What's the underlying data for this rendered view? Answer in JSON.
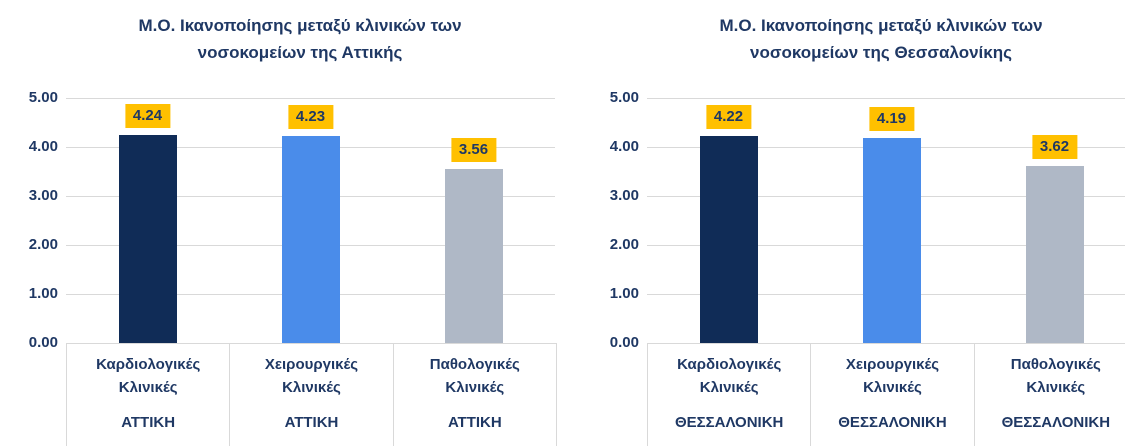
{
  "page": {
    "background": "#FFFFFF"
  },
  "axis": {
    "ticks": [
      "5.00",
      "4.00",
      "3.00",
      "2.00",
      "1.00",
      "0.00"
    ],
    "min": 0,
    "max": 5
  },
  "colors": {
    "title_text": "#1F3864",
    "axis_text": "#1F3864",
    "category_text": "#1F3864",
    "gridline": "#D9D9D9",
    "frame": "#D9D9D9",
    "data_label_bg": "#FFC000",
    "data_label_text": "#1F3864",
    "bar_navy": "#102C57",
    "bar_blue": "#4A8CEA",
    "bar_gray": "#AFB8C6"
  },
  "chart_data": [
    {
      "type": "bar",
      "title": "Μ.Ο. Ικανοποίησης μεταξύ κλινικών των νοσοκομείων της Αττικής",
      "title_lines": [
        "Μ.Ο. Ικανοποίησης μεταξύ κλινικών των",
        "νοσοκομείων της Αττικής"
      ],
      "categories": [
        "Καρδιολογικές Κλινικές",
        "Χειρουργικές Κλινικές",
        "Παθολογικές Κλινικές"
      ],
      "group_labels": [
        "ΑΤΤΙΚΗ",
        "ΑΤΤΙΚΗ",
        "ΑΤΤΙΚΗ"
      ],
      "values": [
        4.24,
        4.23,
        3.56
      ],
      "value_labels": [
        "4.24",
        "4.23",
        "3.56"
      ],
      "bar_colors": [
        "#102C57",
        "#4A8CEA",
        "#AFB8C6"
      ],
      "xlabel": "",
      "ylabel": "",
      "ylim": [
        0,
        5
      ],
      "yticks": [
        "5.00",
        "4.00",
        "3.00",
        "2.00",
        "1.00",
        "0.00"
      ],
      "grid": true,
      "legend": false,
      "data_labels_on_gold_background": true
    },
    {
      "type": "bar",
      "title": "Μ.Ο. Ικανοποίησης μεταξύ κλινικών των νοσοκομείων της Θεσσαλονίκης",
      "title_lines": [
        "Μ.Ο. Ικανοποίησης μεταξύ κλινικών των",
        "νοσοκομείων της Θεσσαλονίκης"
      ],
      "categories": [
        "Καρδιολογικές Κλινικές",
        "Χειρουργικές Κλινικές",
        "Παθολογικές Κλινικές"
      ],
      "group_labels": [
        "ΘΕΣΣΑΛΟΝΙΚΗ",
        "ΘΕΣΣΑΛΟΝΙΚΗ",
        "ΘΕΣΣΑΛΟΝΙΚΗ"
      ],
      "values": [
        4.22,
        4.19,
        3.62
      ],
      "value_labels": [
        "4.22",
        "4.19",
        "3.62"
      ],
      "bar_colors": [
        "#102C57",
        "#4A8CEA",
        "#AFB8C6"
      ],
      "xlabel": "",
      "ylabel": "",
      "ylim": [
        0,
        5
      ],
      "yticks": [
        "5.00",
        "4.00",
        "3.00",
        "2.00",
        "1.00",
        "0.00"
      ],
      "grid": true,
      "legend": false,
      "data_labels_on_gold_background": true
    }
  ]
}
